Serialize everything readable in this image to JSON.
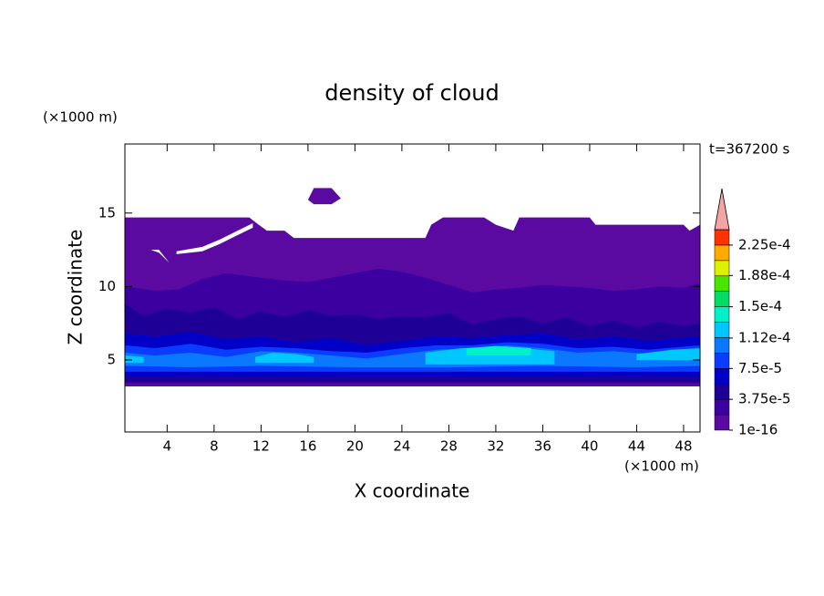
{
  "chart_data": {
    "type": "contour",
    "title": "density of cloud",
    "x_label": "X coordinate",
    "y_label": "Z coordinate",
    "x_unit": "(×1000 m)",
    "y_unit": "(×1000 m)",
    "time_label": "t=367200 s",
    "xlim": [
      0.4,
      49.4
    ],
    "ylim": [
      0.1,
      19.7
    ],
    "xticks": [
      4,
      8,
      12,
      16,
      20,
      24,
      28,
      32,
      36,
      40,
      44,
      48
    ],
    "yticks": [
      5,
      10,
      15
    ],
    "colorbar": {
      "clim": [
        1e-16,
        0.00024375
      ],
      "ticks": [
        1e-16,
        {
          "value": 3.75e-05,
          "label": "3.75e-5"
        },
        {
          "value": 7.5e-05,
          "label": "7.5e-5"
        },
        {
          "value": 0.000112,
          "label": "1.12e-4"
        },
        {
          "value": 0.00015,
          "label": "1.5e-4"
        },
        {
          "value": 0.000188,
          "label": "1.88e-4"
        },
        {
          "value": 0.000225,
          "label": "2.25e-4"
        }
      ],
      "colors": [
        "#5a0aa0",
        "#3c00a0",
        "#1e0096",
        "#0000c8",
        "#0a3cff",
        "#0a78ff",
        "#00c8ff",
        "#00f0c8",
        "#00dc64",
        "#46e600",
        "#dcf000",
        "#ffaa00",
        "#ff3200"
      ],
      "extend_color": "#f4a4a4"
    }
  }
}
